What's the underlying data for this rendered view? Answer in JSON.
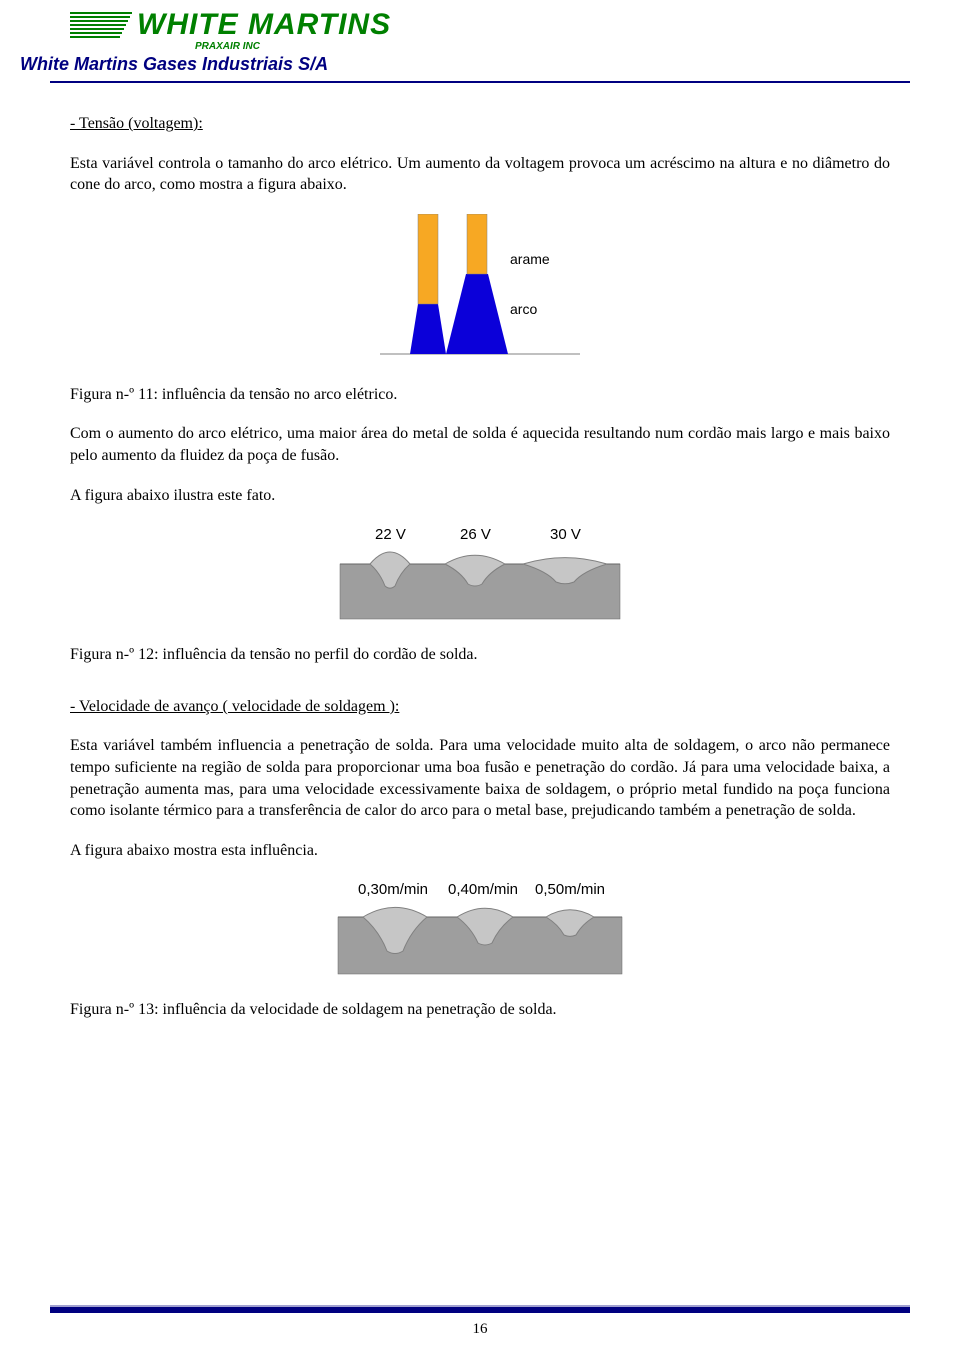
{
  "header": {
    "logo_brand": "WHITE MARTINS",
    "tagline": "PRAXAIR INC",
    "company": "White Martins Gases Industriais S/A"
  },
  "s1": {
    "heading": "- Tensão (voltagem):",
    "p1": "Esta variável controla o tamanho do arco elétrico. Um aumento da voltagem provoca um acréscimo na altura e no diâmetro do cone do arco, como mostra a figura abaixo."
  },
  "fig1": {
    "label_top": "arame",
    "label_bottom": "arco",
    "wire_color": "#f7a823",
    "arc_color": "#0b00d9",
    "line_color": "#808080",
    "font": "Arial",
    "fontsize": 14,
    "caption": "Figura n-º 11: influência da tensão no arco elétrico."
  },
  "s2": {
    "p1": "Com o aumento do arco elétrico, uma maior área do metal de solda é aquecida resultando num cordão mais largo e mais baixo pelo aumento da fluidez da poça de fusão.",
    "p2": "A figura abaixo ilustra este fato."
  },
  "fig2": {
    "v1": "22 V",
    "v2": "26 V",
    "v3": "30 V",
    "cord_fill": "#c6c6c6",
    "cord_stroke": "#808080",
    "bg": "#9e9e9e",
    "font": "Arial",
    "fontsize": 15,
    "caption": "Figura n-º 12: influência da tensão no perfil do cordão de solda."
  },
  "s3": {
    "heading": "- Velocidade de avanço ( velocidade de soldagem ):",
    "p1": "Esta variável também influencia a penetração de solda. Para uma velocidade muito alta de soldagem, o arco não permanece tempo suficiente na região de solda para proporcionar uma boa fusão e penetração do cordão. Já para uma velocidade baixa, a penetração aumenta mas, para uma velocidade excessivamente baixa de soldagem, o próprio metal fundido na poça funciona como isolante térmico para a transferência de calor do arco para o metal base, prejudicando também a penetração de solda.",
    "p2": "A figura abaixo mostra esta influência."
  },
  "fig3": {
    "v1": "0,30m/min",
    "v2": "0,40m/min",
    "v3": "0,50m/min",
    "cord_fill": "#c6c6c6",
    "cord_stroke": "#808080",
    "bg": "#9e9e9e",
    "font": "Arial",
    "fontsize": 15,
    "caption": "Figura n-º 13: influência da velocidade de soldagem na penetração de solda."
  },
  "page_number": "16",
  "colors": {
    "brand_green": "#008000",
    "brand_blue": "#000080"
  }
}
